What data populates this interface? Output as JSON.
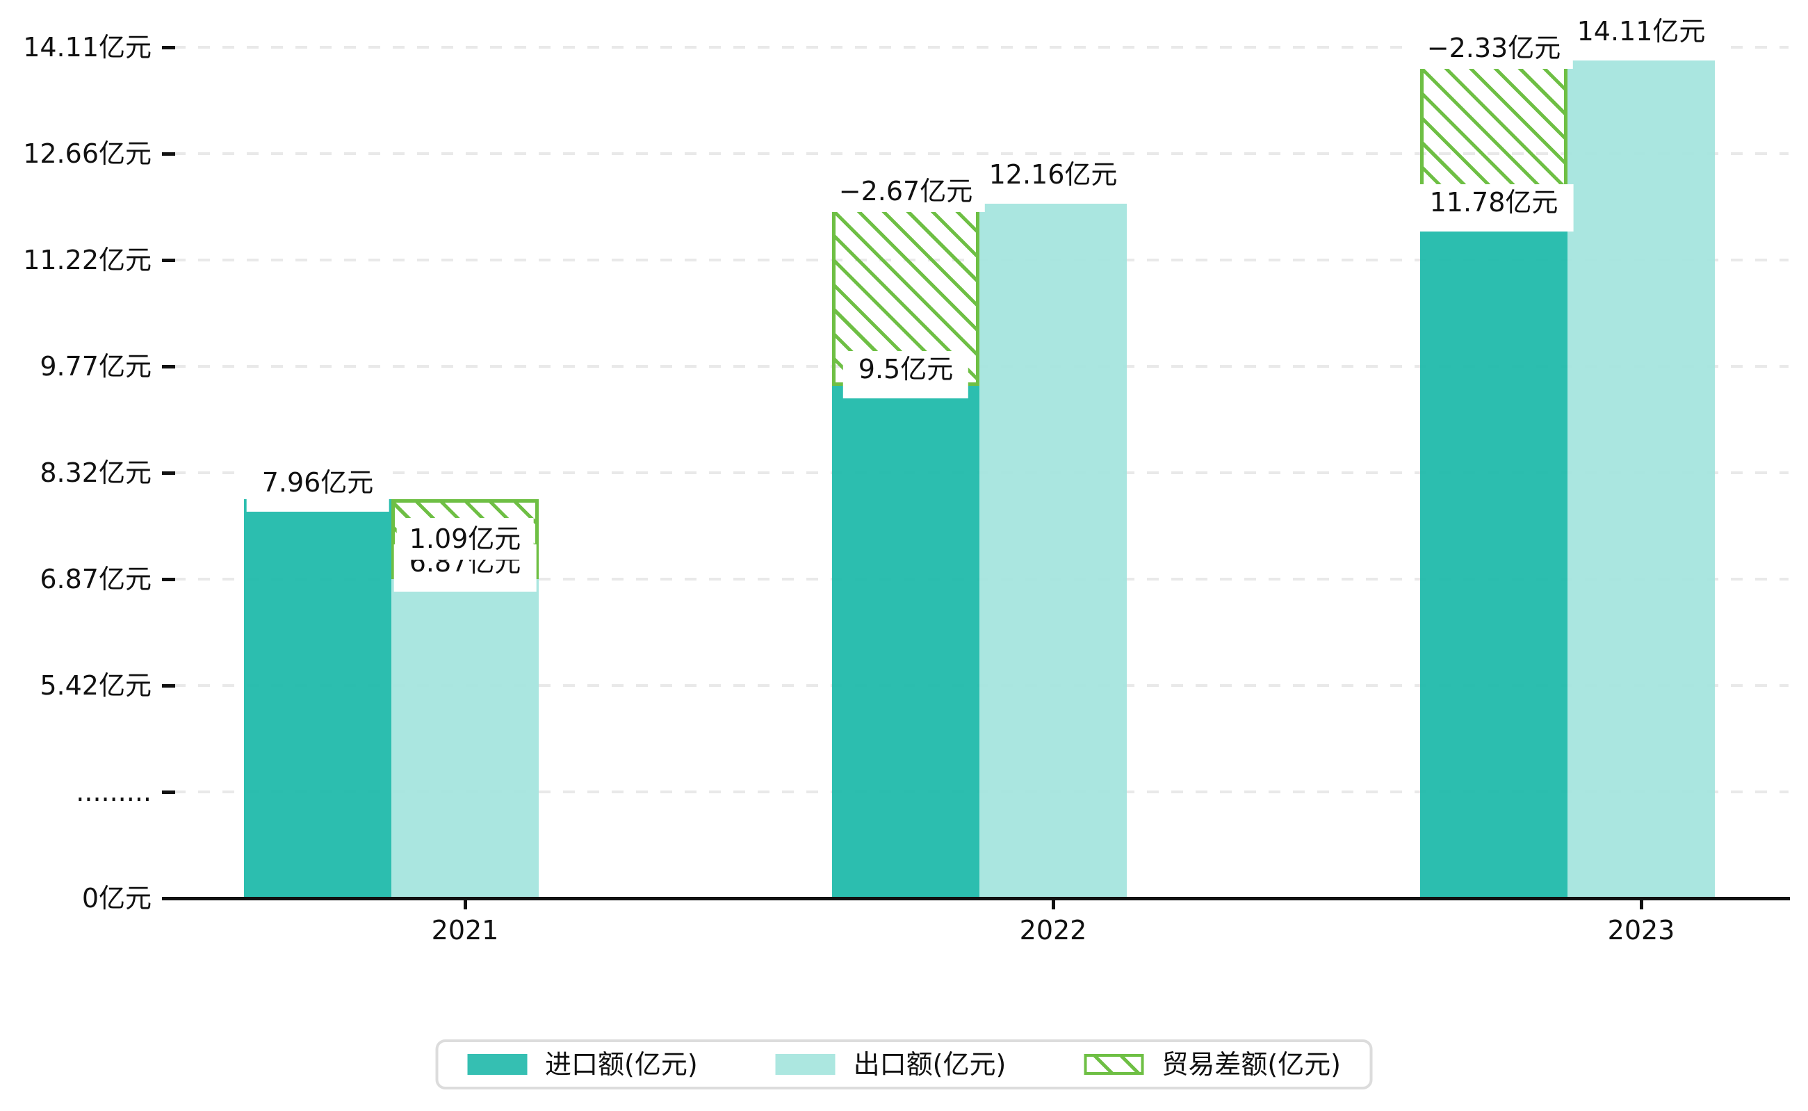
{
  "chart_data": {
    "type": "bar",
    "title": "",
    "categories": [
      "2021",
      "2022",
      "2023"
    ],
    "series": [
      {
        "name": "进口额(亿元)",
        "role": "import",
        "values": [
          7.96,
          9.5,
          11.78
        ],
        "value_labels": [
          "7.96亿元",
          "9.5亿元",
          "11.78亿元"
        ],
        "color": "#35BFB2"
      },
      {
        "name": "出口额(亿元)",
        "role": "export",
        "values": [
          6.87,
          12.16,
          14.11
        ],
        "value_labels": [
          "6.87亿元",
          "12.16亿元",
          "14.11亿元"
        ],
        "color": "#ACE7E0"
      },
      {
        "name": "贸易差额(亿元)",
        "role": "balance",
        "values": [
          1.09,
          -2.67,
          -2.33
        ],
        "value_labels": [
          "1.09亿元",
          "−2.67亿元",
          "−2.33亿元"
        ],
        "color": "#6EBF44",
        "pattern": "diagonal-hatch"
      }
    ],
    "y_axis": {
      "unit": "亿元",
      "tick_labels": [
        "14.11亿元",
        "12.66亿元",
        "11.22亿元",
        "9.77亿元",
        "8.32亿元",
        "6.87亿元",
        "5.42亿元",
        ".........",
        "0亿元"
      ],
      "tick_values": [
        14.11,
        12.66,
        11.22,
        9.77,
        8.32,
        6.87,
        5.42,
        null,
        0
      ],
      "has_axis_break": true,
      "break_tick_label": ".........",
      "ylim": [
        0,
        14.11
      ]
    },
    "x_axis": {
      "tick_labels": [
        "2021",
        "2022",
        "2023"
      ]
    },
    "legend": {
      "position": "bottom",
      "items": [
        "进口额(亿元)",
        "出口额(亿元)",
        "贸易差额(亿元)"
      ]
    },
    "grid": true,
    "gridline_style": "dashed"
  },
  "colors": {
    "import_bar": "#35BFB2",
    "export_bar": "#ACE7E0",
    "balance_hatch": "#6EBF44",
    "gridline": "#E9E9E9",
    "axis": "#111111",
    "text": "#111111",
    "legend_border": "#DCDCDC",
    "background": "#FFFFFF"
  }
}
